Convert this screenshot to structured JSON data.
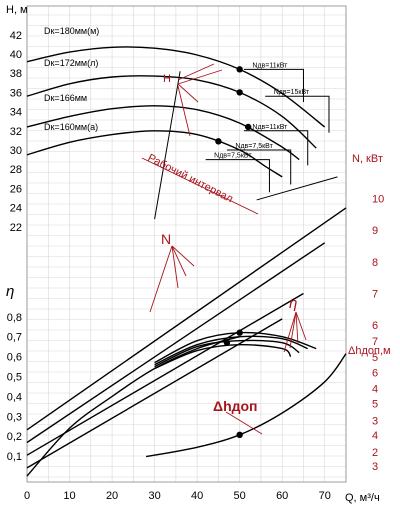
{
  "chart_data": {
    "type": "line",
    "x_axis": {
      "label": "Q, м³/ч",
      "range": [
        0,
        75
      ],
      "ticks": [
        0,
        10,
        20,
        30,
        40,
        50,
        60,
        70
      ]
    },
    "head_axis": {
      "label": "H, м",
      "range": [
        19,
        42
      ],
      "ticks": [
        22,
        24,
        26,
        28,
        30,
        32,
        34,
        36,
        38,
        40,
        42
      ]
    },
    "power_axis": {
      "label": "N, кВт",
      "range": [
        1.5,
        10.5
      ],
      "ticks": [
        2,
        3,
        4,
        5,
        6,
        7,
        8,
        9,
        10
      ]
    },
    "efficiency_axis": {
      "label": "η",
      "range": [
        0,
        0.9
      ],
      "ticks": [
        0.1,
        0.2,
        0.3,
        0.4,
        0.5,
        0.6,
        0.7,
        0.8
      ]
    },
    "npsh_axis": {
      "label": "Δhдоп,м",
      "range": [
        2.5,
        7.5
      ],
      "ticks": [
        3,
        4,
        5,
        6,
        7
      ]
    },
    "head_curves": [
      {
        "name": "Dк=180мм(м)",
        "x": [
          0,
          10,
          20,
          30,
          40,
          50,
          60,
          70
        ],
        "y": [
          39.2,
          40.2,
          40.7,
          40.6,
          39.9,
          38.4,
          35.9,
          32.4
        ]
      },
      {
        "name": "Dк=172мм(л)",
        "x": [
          0,
          10,
          20,
          30,
          40,
          50,
          60,
          68
        ],
        "y": [
          35.6,
          36.9,
          37.6,
          37.7,
          37.3,
          36.0,
          33.5,
          30.2
        ]
      },
      {
        "name": "Dк=166мм",
        "x": [
          0,
          10,
          20,
          30,
          40,
          50,
          60,
          64
        ],
        "y": [
          32.4,
          33.5,
          34.3,
          34.6,
          34.2,
          32.8,
          30.3,
          29.0
        ]
      },
      {
        "name": "Dк=160мм(а)",
        "x": [
          0,
          10,
          20,
          30,
          40,
          50,
          56,
          60
        ],
        "y": [
          29.5,
          30.8,
          31.6,
          32.0,
          31.6,
          30.0,
          28.3,
          27.2
        ]
      }
    ],
    "power_curves": [
      {
        "x": [
          0,
          75
        ],
        "y": [
          2.7,
          9.7
        ]
      },
      {
        "x": [
          0,
          70
        ],
        "y": [
          2.3,
          8.6
        ]
      },
      {
        "x": [
          0,
          65
        ],
        "y": [
          1.9,
          7.0
        ]
      },
      {
        "x": [
          0,
          60
        ],
        "y": [
          1.5,
          6.2
        ]
      }
    ],
    "efficiency_curves": [
      {
        "x": [
          30,
          40,
          50,
          60,
          68
        ],
        "y": [
          0.57,
          0.68,
          0.72,
          0.7,
          0.64
        ]
      },
      {
        "x": [
          30,
          40,
          50,
          60,
          66
        ],
        "y": [
          0.56,
          0.66,
          0.7,
          0.69,
          0.64
        ]
      },
      {
        "x": [
          30,
          40,
          50,
          60,
          64
        ],
        "y": [
          0.55,
          0.65,
          0.68,
          0.67,
          0.62
        ]
      },
      {
        "x": [
          30,
          40,
          50,
          60,
          62
        ],
        "y": [
          0.54,
          0.63,
          0.66,
          0.64,
          0.6
        ]
      }
    ],
    "efficiency_envelope": {
      "x": [
        0,
        10,
        20,
        30,
        40,
        50
      ],
      "y": [
        0.0,
        0.24,
        0.4,
        0.54,
        0.64,
        0.7
      ]
    },
    "npsh_curve": {
      "x": [
        28,
        40,
        50,
        60,
        70,
        75
      ],
      "y": [
        3.3,
        3.6,
        4.0,
        4.7,
        5.7,
        6.6
      ]
    },
    "markers": [
      {
        "axis": "head",
        "x": 50,
        "y": 38.4
      },
      {
        "axis": "head",
        "x": 50,
        "y": 36.0
      },
      {
        "axis": "head",
        "x": 52,
        "y": 32.4
      },
      {
        "axis": "head",
        "x": 45,
        "y": 30.9
      },
      {
        "axis": "efficiency",
        "x": 50,
        "y": 0.72
      },
      {
        "axis": "efficiency",
        "x": 47,
        "y": 0.67
      },
      {
        "axis": "npsh",
        "x": 50,
        "y": 4.0
      }
    ],
    "power_labels": [
      "Nдв=11кВт",
      "Nдв=15кВт",
      "Nдв=11кВт",
      "Nдв=7,5кВт",
      "Nдв=7,5кВт"
    ],
    "annotations": {
      "head_pointer": "H",
      "power_pointer": "N",
      "efficiency_pointer": "η",
      "npsh_pointer": "Δhдоп",
      "working_range": "Рабочий интервал"
    },
    "colors": {
      "curves": "#000000",
      "annotations": "#a8141c",
      "grid": "#d7d7d7"
    }
  }
}
